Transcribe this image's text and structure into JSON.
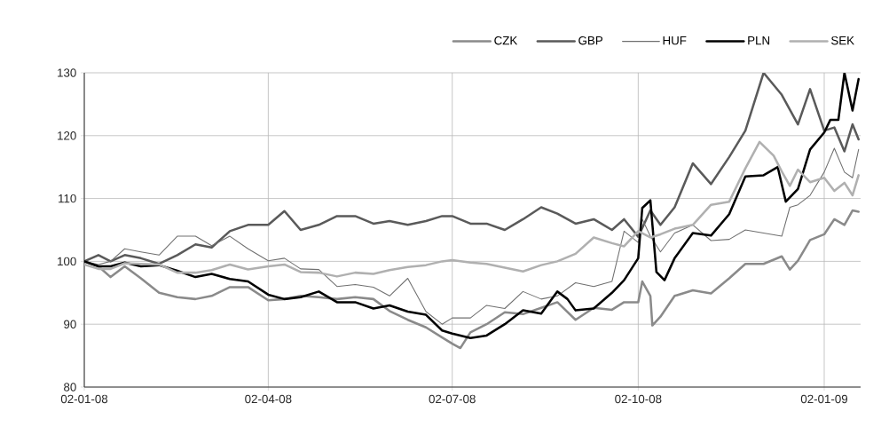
{
  "chart_data": {
    "type": "line",
    "xlim": [
      "2008-01-02",
      "2009-01-20"
    ],
    "xticks": [
      {
        "value": "2008-01-02",
        "label": "02-01-08"
      },
      {
        "value": "2008-04-02",
        "label": "02-04-08"
      },
      {
        "value": "2008-07-02",
        "label": "02-07-08"
      },
      {
        "value": "2008-10-02",
        "label": "02-10-08"
      },
      {
        "value": "2009-01-02",
        "label": "02-01-09"
      }
    ],
    "ylim": [
      80,
      130
    ],
    "yticks": [
      80,
      90,
      100,
      110,
      120,
      130
    ],
    "grid": true,
    "legend": "top right",
    "marker": "none",
    "line_style": "solid",
    "series": [
      {
        "name": "CZK",
        "color": "#8a8a8a",
        "x": [
          "2008-01-02",
          "2008-01-09",
          "2008-01-15",
          "2008-01-22",
          "2008-01-30",
          "2008-02-08",
          "2008-02-17",
          "2008-02-26",
          "2008-03-05",
          "2008-03-14",
          "2008-03-23",
          "2008-04-02",
          "2008-04-10",
          "2008-04-18",
          "2008-04-27",
          "2008-05-06",
          "2008-05-15",
          "2008-05-24",
          "2008-06-01",
          "2008-06-10",
          "2008-06-19",
          "2008-06-27",
          "2008-07-02",
          "2008-07-06",
          "2008-07-11",
          "2008-07-19",
          "2008-07-28",
          "2008-08-06",
          "2008-08-15",
          "2008-08-23",
          "2008-09-01",
          "2008-09-10",
          "2008-09-19",
          "2008-09-25",
          "2008-10-02",
          "2008-10-04",
          "2008-10-08",
          "2008-10-09",
          "2008-10-13",
          "2008-10-20",
          "2008-10-29",
          "2008-11-07",
          "2008-11-16",
          "2008-11-24",
          "2008-12-03",
          "2008-12-12",
          "2008-12-16",
          "2008-12-20",
          "2008-12-26",
          "2009-01-02",
          "2009-01-07",
          "2009-01-12",
          "2009-01-16",
          "2009-01-19"
        ],
        "values": [
          100,
          99.2,
          97.5,
          99.2,
          97.3,
          95,
          94.3,
          94,
          94.5,
          95.9,
          95.9,
          93.8,
          94,
          94.5,
          94.3,
          94,
          94.3,
          94,
          92.1,
          90.7,
          89.5,
          87.9,
          86.9,
          86.2,
          88.7,
          90,
          91.9,
          91.6,
          92.6,
          93.5,
          90.7,
          92.6,
          92.3,
          93.5,
          93.5,
          96.8,
          94.5,
          89.8,
          91.2,
          94.5,
          95.4,
          94.9,
          97.3,
          99.6,
          99.6,
          100.8,
          98.7,
          100.1,
          103.4,
          104.3,
          106.7,
          105.8,
          108.1,
          107.9
        ]
      },
      {
        "name": "GBP",
        "color": "#5a5a5a",
        "x": [
          "2008-01-02",
          "2008-01-09",
          "2008-01-15",
          "2008-01-22",
          "2008-01-30",
          "2008-02-08",
          "2008-02-17",
          "2008-02-26",
          "2008-03-05",
          "2008-03-14",
          "2008-03-23",
          "2008-04-02",
          "2008-04-10",
          "2008-04-18",
          "2008-04-27",
          "2008-05-06",
          "2008-05-15",
          "2008-05-24",
          "2008-06-01",
          "2008-06-10",
          "2008-06-19",
          "2008-06-27",
          "2008-07-02",
          "2008-07-11",
          "2008-07-19",
          "2008-07-28",
          "2008-08-06",
          "2008-08-15",
          "2008-08-23",
          "2008-09-01",
          "2008-09-10",
          "2008-09-19",
          "2008-09-25",
          "2008-10-02",
          "2008-10-08",
          "2008-10-13",
          "2008-10-20",
          "2008-10-29",
          "2008-11-07",
          "2008-11-16",
          "2008-11-24",
          "2008-12-03",
          "2008-12-12",
          "2008-12-20",
          "2008-12-26",
          "2009-01-02",
          "2009-01-07",
          "2009-01-12",
          "2009-01-16",
          "2009-01-19"
        ],
        "values": [
          100,
          101,
          100,
          101,
          100.5,
          99.6,
          101,
          102.7,
          102.2,
          104.8,
          105.8,
          105.8,
          108,
          105,
          105.8,
          107.2,
          107.2,
          106,
          106.4,
          105.8,
          106.4,
          107.2,
          107.2,
          106,
          106,
          105,
          106.7,
          108.6,
          107.6,
          106,
          106.7,
          105,
          106.7,
          103.9,
          108.1,
          105.8,
          108.6,
          115.6,
          112.3,
          116.6,
          120.8,
          130,
          126.5,
          121.8,
          127.4,
          120.8,
          121.3,
          117.5,
          121.8,
          119.4
        ]
      },
      {
        "name": "HUF",
        "color": "#707070",
        "x": [
          "2008-01-02",
          "2008-01-09",
          "2008-01-15",
          "2008-01-22",
          "2008-01-30",
          "2008-02-08",
          "2008-02-17",
          "2008-02-26",
          "2008-03-05",
          "2008-03-14",
          "2008-03-23",
          "2008-04-02",
          "2008-04-10",
          "2008-04-18",
          "2008-04-27",
          "2008-05-06",
          "2008-05-15",
          "2008-05-24",
          "2008-06-01",
          "2008-06-10",
          "2008-06-19",
          "2008-06-27",
          "2008-07-02",
          "2008-07-11",
          "2008-07-19",
          "2008-07-28",
          "2008-08-06",
          "2008-08-15",
          "2008-08-23",
          "2008-09-01",
          "2008-09-10",
          "2008-09-19",
          "2008-09-25",
          "2008-10-02",
          "2008-10-04",
          "2008-10-08",
          "2008-10-13",
          "2008-10-20",
          "2008-10-29",
          "2008-11-07",
          "2008-11-16",
          "2008-11-24",
          "2008-12-03",
          "2008-12-12",
          "2008-12-16",
          "2008-12-20",
          "2008-12-26",
          "2009-01-02",
          "2009-01-07",
          "2009-01-12",
          "2009-01-16",
          "2009-01-19"
        ],
        "values": [
          100,
          99.5,
          100,
          102,
          101.5,
          101,
          104,
          104,
          102.5,
          104,
          102,
          100.1,
          100.5,
          98.8,
          98.7,
          96,
          96.3,
          95.9,
          94.5,
          97.3,
          92,
          90,
          91,
          91,
          93,
          92.5,
          95.2,
          94,
          94.5,
          96.6,
          96,
          96.8,
          104.8,
          103,
          106.7,
          104,
          101.5,
          104.5,
          105.8,
          103.3,
          103.5,
          105,
          104.5,
          104,
          108.6,
          109,
          110.5,
          114.2,
          118,
          114.2,
          113.3,
          117.8
        ]
      },
      {
        "name": "PLN",
        "color": "#000000",
        "x": [
          "2008-01-02",
          "2008-01-09",
          "2008-01-15",
          "2008-01-22",
          "2008-01-30",
          "2008-02-08",
          "2008-02-17",
          "2008-02-26",
          "2008-03-05",
          "2008-03-14",
          "2008-03-23",
          "2008-04-02",
          "2008-04-10",
          "2008-04-18",
          "2008-04-27",
          "2008-05-06",
          "2008-05-15",
          "2008-05-24",
          "2008-06-01",
          "2008-06-10",
          "2008-06-19",
          "2008-06-27",
          "2008-07-02",
          "2008-07-11",
          "2008-07-19",
          "2008-07-28",
          "2008-08-06",
          "2008-08-15",
          "2008-08-23",
          "2008-08-28",
          "2008-09-01",
          "2008-09-10",
          "2008-09-19",
          "2008-09-25",
          "2008-10-02",
          "2008-10-04",
          "2008-10-08",
          "2008-10-11",
          "2008-10-15",
          "2008-10-20",
          "2008-10-29",
          "2008-11-07",
          "2008-11-16",
          "2008-11-24",
          "2008-12-03",
          "2008-12-10",
          "2008-12-14",
          "2008-12-20",
          "2008-12-26",
          "2009-01-02",
          "2009-01-05",
          "2009-01-09",
          "2009-01-12",
          "2009-01-16",
          "2009-01-19"
        ],
        "values": [
          100,
          99.2,
          99.2,
          99.8,
          99.2,
          99.4,
          98.5,
          97.5,
          98,
          97.2,
          96.8,
          94.7,
          94,
          94.3,
          95.2,
          93.5,
          93.5,
          92.5,
          93,
          92,
          91.5,
          89,
          88.5,
          87.8,
          88.2,
          90,
          92.2,
          91.7,
          95.2,
          94,
          92.2,
          92.5,
          95,
          97,
          100.5,
          108.5,
          109.7,
          98.3,
          97,
          100.5,
          104.5,
          104.1,
          107.5,
          113.5,
          113.7,
          115,
          109.5,
          111.5,
          117.8,
          120.5,
          122.5,
          122.5,
          130,
          124,
          129
        ]
      },
      {
        "name": "SEK",
        "color": "#b0b0b0",
        "x": [
          "2008-01-02",
          "2008-01-09",
          "2008-01-15",
          "2008-01-22",
          "2008-01-30",
          "2008-02-08",
          "2008-02-17",
          "2008-02-26",
          "2008-03-05",
          "2008-03-14",
          "2008-03-23",
          "2008-04-02",
          "2008-04-10",
          "2008-04-18",
          "2008-04-27",
          "2008-05-06",
          "2008-05-15",
          "2008-05-24",
          "2008-06-01",
          "2008-06-10",
          "2008-06-19",
          "2008-06-27",
          "2008-07-02",
          "2008-07-11",
          "2008-07-19",
          "2008-07-28",
          "2008-08-06",
          "2008-08-15",
          "2008-08-23",
          "2008-09-01",
          "2008-09-10",
          "2008-09-19",
          "2008-09-25",
          "2008-10-02",
          "2008-10-08",
          "2008-10-13",
          "2008-10-20",
          "2008-10-29",
          "2008-11-07",
          "2008-11-16",
          "2008-11-24",
          "2008-12-01",
          "2008-12-08",
          "2008-12-12",
          "2008-12-16",
          "2008-12-20",
          "2008-12-26",
          "2009-01-02",
          "2009-01-07",
          "2009-01-12",
          "2009-01-16",
          "2009-01-19"
        ],
        "values": [
          99.5,
          98.8,
          98.8,
          99.7,
          99.6,
          99.5,
          98.2,
          98.2,
          98.6,
          99.5,
          98.7,
          99.2,
          99.5,
          98.3,
          98.2,
          97.6,
          98.2,
          98,
          98.6,
          99.1,
          99.4,
          100,
          100.2,
          99.8,
          99.6,
          99,
          98.4,
          99.4,
          100,
          101.2,
          103.8,
          102.9,
          102.4,
          104.8,
          103.8,
          104.3,
          105.2,
          105.8,
          109,
          109.5,
          114.8,
          119,
          116.8,
          114.3,
          112,
          114.6,
          112.6,
          113.3,
          111.2,
          112.5,
          110.5,
          113.7
        ]
      }
    ]
  }
}
